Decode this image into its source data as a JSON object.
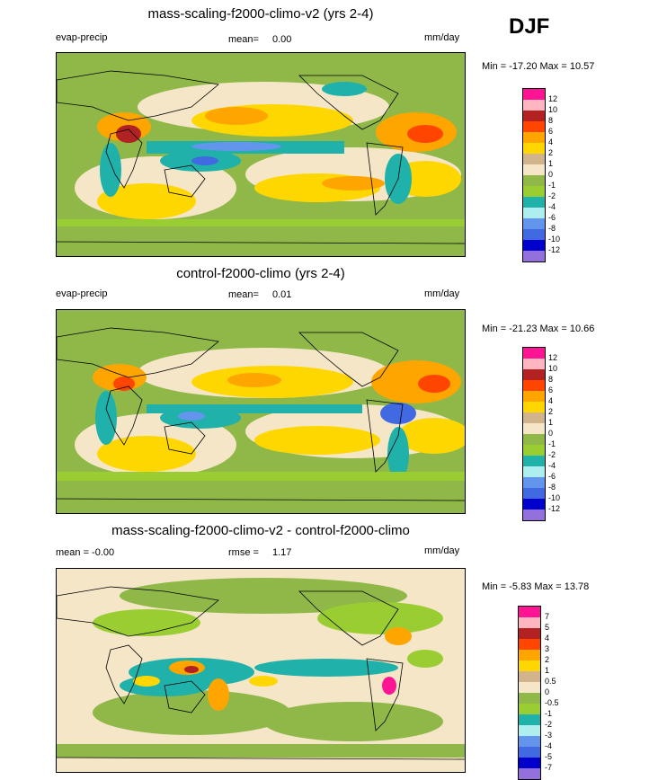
{
  "season": "DJF",
  "panels": [
    {
      "title": "mass-scaling-f2000-climo-v2 (yrs 2-4)",
      "left_label": "evap-precip",
      "mean_label": "mean=",
      "mean_value": "0.00",
      "units": "mm/day",
      "minmax": "Min = -17.20 Max =  10.57",
      "cbar_labels": [
        "12",
        "10",
        "8",
        "6",
        "4",
        "2",
        "1",
        "0",
        "-1",
        "-2",
        "-4",
        "-6",
        "-8",
        "-10",
        "-12"
      ]
    },
    {
      "title": "control-f2000-climo (yrs 2-4)",
      "left_label": "evap-precip",
      "mean_label": "mean=",
      "mean_value": "0.01",
      "units": "mm/day",
      "minmax": "Min = -21.23 Max =  10.66",
      "cbar_labels": [
        "12",
        "10",
        "8",
        "6",
        "4",
        "2",
        "1",
        "0",
        "-1",
        "-2",
        "-4",
        "-6",
        "-8",
        "-10",
        "-12"
      ]
    },
    {
      "title": "mass-scaling-f2000-climo-v2 - control-f2000-climo",
      "left_label": "mean =  -0.00",
      "mean_label": "rmse =",
      "mean_value": "1.17",
      "units": "mm/day",
      "minmax": "Min =  -5.83 Max =  13.78",
      "cbar_labels": [
        "7",
        "5",
        "4",
        "3",
        "2",
        "1",
        "0.5",
        "0",
        "-0.5",
        "-1",
        "-2",
        "-3",
        "-4",
        "-5",
        "-7"
      ]
    }
  ],
  "colorbar_colors": [
    "#ff1493",
    "#ffb6c1",
    "#b22222",
    "#ff4500",
    "#ffa500",
    "#ffd700",
    "#d2b48c",
    "#f5e6c8",
    "#8fb849",
    "#9acd32",
    "#20b2aa",
    "#afeeee",
    "#6495ed",
    "#4169e1",
    "#0000cd",
    "#9370db"
  ]
}
